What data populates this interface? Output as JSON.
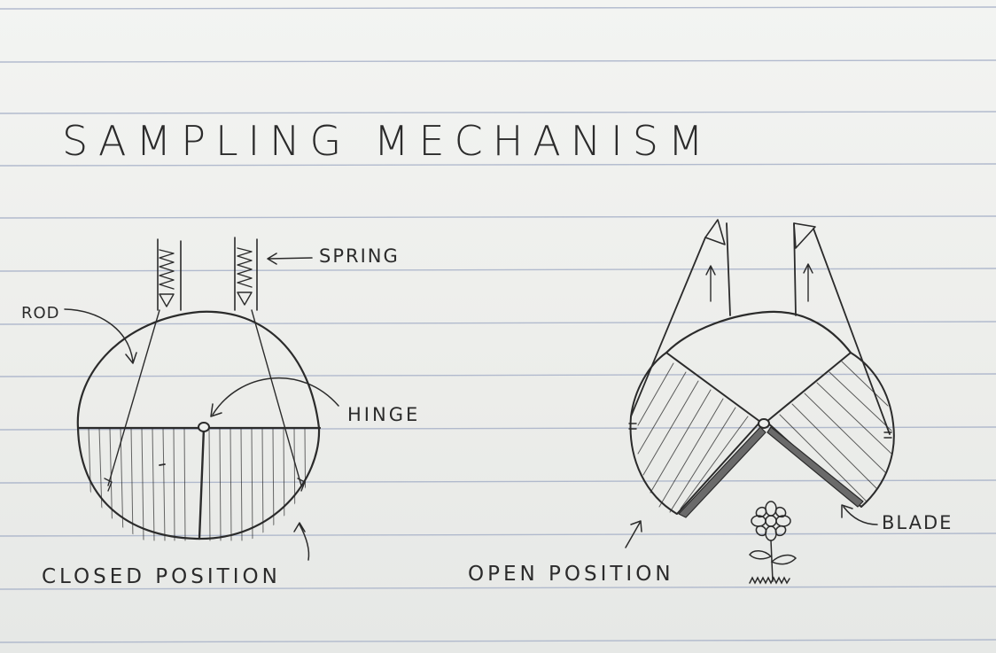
{
  "title": "SAMPLING MECHANISM",
  "labels": {
    "spring": "SPRING",
    "rod": "ROD",
    "hinge": "HINGE",
    "blade": "BLADE",
    "closed_position": "CLOSED POSITION",
    "open_position": "OPEN POSITION"
  },
  "colors": {
    "paper": "#eef0ee",
    "rule_line": "#9aa6c0",
    "ink": "#2b2b2b"
  },
  "icons": [
    "spring-icon",
    "flower-icon",
    "arrow-icon"
  ]
}
